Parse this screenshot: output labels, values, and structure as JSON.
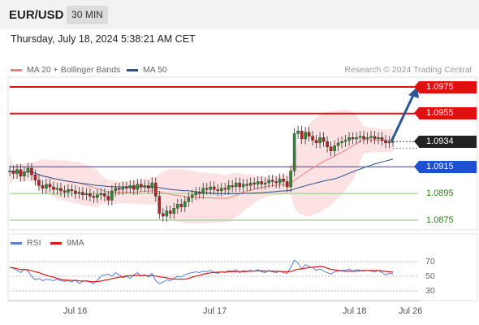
{
  "header": {
    "symbol": "EUR/USD",
    "timeframe": "30 MIN",
    "timestamp": "Thursday, July 18, 2024 5:38:21 AM CET"
  },
  "legend": {
    "ma20": {
      "label": "MA 20 + Bollinger Bands",
      "color": "#f08080"
    },
    "ma50": {
      "label": "MA 50",
      "color": "#2b4f8c"
    },
    "credit": "Research © 2024 Trading Central"
  },
  "levels": [
    {
      "label": "1.0975",
      "style": "red",
      "value": 1.0975
    },
    {
      "label": "1.0955",
      "style": "red",
      "value": 1.0955
    },
    {
      "label": "1.0934",
      "style": "dark",
      "value": 1.0934
    },
    {
      "label": "1.0915",
      "style": "blue",
      "value": 1.0915
    },
    {
      "label": "1.0895",
      "style": "green",
      "value": 1.0895
    },
    {
      "label": "1.0875",
      "style": "green",
      "value": 1.0875
    }
  ],
  "rsi_panel": {
    "rsi_label": "RSI",
    "ma_label": "9MA",
    "rsi_color": "#5b7fd6",
    "ma_color": "#d91a1a",
    "ticks": [
      "70",
      "50",
      "30"
    ]
  },
  "x_axis": {
    "labels": [
      "Jul 16",
      "Jul 17",
      "Jul 18",
      "Jul 26"
    ]
  },
  "chart_data": {
    "type": "candlestick",
    "instrument": "EUR/USD",
    "interval": "30 MIN",
    "price_levels": [
      1.0975,
      1.0955,
      1.0934,
      1.0915,
      1.0895,
      1.0875
    ],
    "last_price": 1.0934,
    "close_series": [
      1.0912,
      1.091,
      1.0913,
      1.0908,
      1.0911,
      1.0914,
      1.0909,
      1.0905,
      1.0901,
      1.0899,
      1.0902,
      1.09,
      1.0898,
      1.0899,
      1.0897,
      1.0896,
      1.0898,
      1.0897,
      1.0895,
      1.0896,
      1.0894,
      1.0895,
      1.0893,
      1.0892,
      1.0894,
      1.0895,
      1.0893,
      1.089,
      1.0897,
      1.0899,
      1.0898,
      1.09,
      1.0899,
      1.0901,
      1.0898,
      1.0902,
      1.09,
      1.0901,
      1.0899,
      1.0903,
      1.0893,
      1.088,
      1.0878,
      1.0882,
      1.088,
      1.0884,
      1.0887,
      1.0885,
      1.0889,
      1.0892,
      1.0894,
      1.0896,
      1.0895,
      1.0899,
      1.0898,
      1.09,
      1.0898,
      1.0897,
      1.0899,
      1.0898,
      1.0901,
      1.09,
      1.0903,
      1.09,
      1.0902,
      1.0901,
      1.0903,
      1.0902,
      1.0904,
      1.0902,
      1.0903,
      1.0905,
      1.0904,
      1.0903,
      1.0906,
      1.0904,
      1.09,
      1.0912,
      1.094,
      1.0942,
      1.0936,
      1.0941,
      1.0938,
      1.0935,
      1.0933,
      1.0937,
      1.0934,
      1.093,
      1.0927,
      1.0931,
      1.0933,
      1.0934,
      1.0935,
      1.0937,
      1.0936,
      1.0937,
      1.0938,
      1.0936,
      1.0937,
      1.0938,
      1.0936,
      1.0937,
      1.0935,
      1.0933,
      1.0934,
      1.0934
    ],
    "rsi_series": [
      62,
      61,
      58,
      55,
      60,
      57,
      50,
      45,
      47,
      44,
      46,
      45,
      44,
      46,
      44,
      43,
      44,
      42,
      45,
      40,
      43,
      44,
      42,
      40,
      45,
      50,
      52,
      53,
      50,
      55,
      52,
      48,
      50,
      47,
      52,
      55,
      50,
      52,
      49,
      54,
      44,
      40,
      42,
      45,
      44,
      47,
      50,
      49,
      52,
      54,
      55,
      56,
      55,
      57,
      56,
      58,
      55,
      54,
      56,
      55,
      58,
      57,
      59,
      55,
      58,
      57,
      58,
      57,
      59,
      56,
      55,
      58,
      56,
      55,
      57,
      55,
      54,
      62,
      72,
      68,
      60,
      66,
      63,
      62,
      58,
      60,
      57,
      55,
      53,
      56,
      57,
      58,
      58,
      60,
      57,
      59,
      58,
      57,
      58,
      57,
      56,
      58,
      55,
      52,
      54,
      53
    ],
    "rsi_levels": [
      70,
      50,
      30
    ],
    "x_labels": [
      "Jul 16",
      "Jul 17",
      "Jul 18",
      "Jul 26"
    ]
  }
}
